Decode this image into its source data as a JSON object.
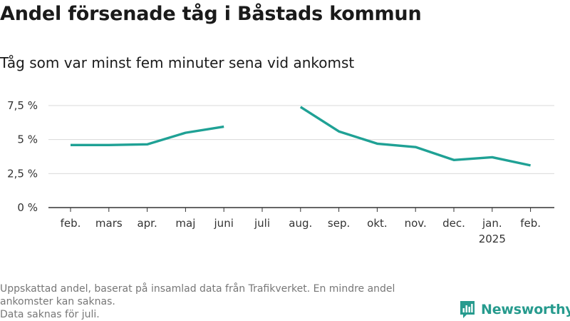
{
  "title": "Andel försenade tåg i Båstads kommun",
  "subtitle": "Tåg som var minst fem minuter sena vid ankomst",
  "footer": {
    "line1": "Uppskattad andel, baserat på insamlad data från Trafikverket. En mindre andel",
    "line2": "ankomster kan saknas.",
    "line3": "Data saknas för juli."
  },
  "logo": {
    "text": "Newsworthy",
    "color": "#279b8e"
  },
  "chart_data": {
    "type": "line",
    "categories": [
      "feb.",
      "mars",
      "apr.",
      "maj",
      "juni",
      "juli",
      "aug.",
      "sep.",
      "okt.",
      "nov.",
      "dec.",
      "jan.",
      "feb."
    ],
    "year_labels": [
      "",
      "",
      "",
      "",
      "",
      "",
      "",
      "",
      "",
      "",
      "",
      "2025",
      ""
    ],
    "series": [
      {
        "values": [
          4.6,
          4.6,
          4.65,
          5.5,
          5.95,
          null,
          7.4,
          5.6,
          4.7,
          4.45,
          3.5,
          3.7,
          3.1
        ]
      }
    ],
    "y_ticks": [
      0,
      2.5,
      5,
      7.5
    ],
    "y_tick_labels": [
      "0 %",
      "2,5 %",
      "5 %",
      "7,5 %"
    ],
    "ylim": [
      0,
      7.5
    ],
    "grid": true,
    "color": "#1fa195",
    "grid_color": "#d9d9d9",
    "axis_color": "#333333"
  }
}
